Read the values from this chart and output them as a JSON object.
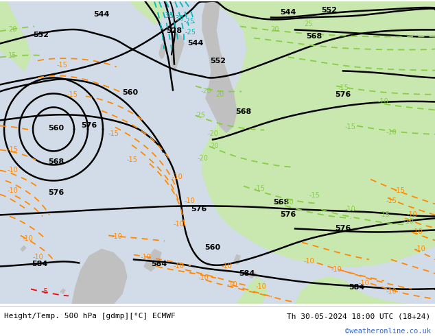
{
  "title_left": "Height/Temp. 500 hPa [gdmp][°C] ECMWF",
  "title_right": "Th 30-05-2024 18:00 UTC (18+24)",
  "watermark": "©weatheronline.co.uk",
  "fig_width": 6.34,
  "fig_height": 4.9,
  "dpi": 100,
  "bg_ocean": "#d2dce8",
  "bg_land_gray": "#c8c8c8",
  "bg_land_green": "#c8e8b0",
  "col_z500": "#000000",
  "col_temp_cyan": "#00bbbb",
  "col_temp_orange": "#ff8800",
  "col_temp_green": "#88cc44",
  "col_temp_red": "#ff0000",
  "watermark_color": "#3366cc"
}
